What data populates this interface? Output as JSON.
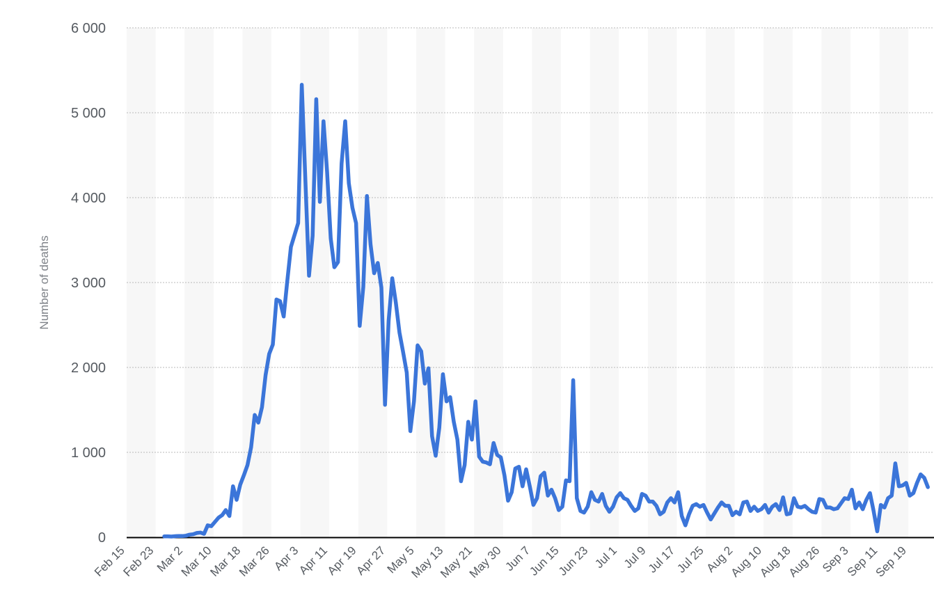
{
  "chart_data": {
    "type": "line",
    "title": "",
    "xlabel": "",
    "ylabel": "Number of deaths",
    "ylim": [
      0,
      6000
    ],
    "y_ticks": [
      0,
      1000,
      2000,
      3000,
      4000,
      5000,
      6000
    ],
    "y_tick_labels": [
      "0",
      "1 000",
      "2 000",
      "3 000",
      "4 000",
      "5 000",
      "6 000"
    ],
    "x_tick_labels": [
      "Feb 15",
      "Feb 23",
      "Mar 2",
      "Mar 10",
      "Mar 18",
      "Mar 26",
      "Apr 3",
      "Apr 11",
      "Apr 19",
      "Apr 27",
      "May 5",
      "May 13",
      "May 21",
      "May 30",
      "Jun 7",
      "Jun 15",
      "Jun 23",
      "Jul 1",
      "Jul 9",
      "Jul 17",
      "Jul 25",
      "Aug 2",
      "Aug 10",
      "Aug 18",
      "Aug 26",
      "Sep 3",
      "Sep 11",
      "Sep 19"
    ],
    "grid": true,
    "legend": "none",
    "colors": {
      "line": "#3b75d9",
      "band": "#f7f7f7",
      "grid": "#b9b9b9",
      "axis": "#000000"
    },
    "series": [
      {
        "values": [
          10,
          10,
          8,
          12,
          15,
          14,
          18,
          30,
          35,
          50,
          55,
          40,
          140,
          130,
          180,
          230,
          260,
          320,
          250,
          600,
          440,
          620,
          730,
          850,
          1060,
          1440,
          1350,
          1530,
          1910,
          2160,
          2270,
          2800,
          2780,
          2600,
          3020,
          3420,
          3560,
          3700,
          5330,
          4200,
          3080,
          3550,
          5160,
          3950,
          4900,
          4300,
          3520,
          3180,
          3240,
          4400,
          4900,
          4170,
          3880,
          3700,
          2490,
          2950,
          4020,
          3450,
          3110,
          3230,
          2940,
          1560,
          2550,
          3050,
          2760,
          2410,
          2180,
          1940,
          1250,
          1600,
          2260,
          2190,
          1810,
          1990,
          1190,
          960,
          1290,
          1920,
          1600,
          1650,
          1360,
          1150,
          660,
          850,
          1360,
          1150,
          1600,
          950,
          890,
          880,
          860,
          1110,
          970,
          940,
          730,
          430,
          530,
          810,
          830,
          600,
          800,
          600,
          380,
          460,
          720,
          760,
          490,
          560,
          460,
          320,
          360,
          670,
          660,
          1850,
          460,
          310,
          290,
          360,
          530,
          440,
          420,
          510,
          370,
          300,
          360,
          470,
          520,
          460,
          440,
          370,
          310,
          340,
          510,
          490,
          420,
          420,
          370,
          270,
          300,
          410,
          460,
          410,
          530,
          250,
          140,
          270,
          370,
          390,
          360,
          380,
          290,
          210,
          280,
          350,
          410,
          370,
          370,
          260,
          300,
          270,
          410,
          420,
          310,
          360,
          310,
          330,
          380,
          290,
          360,
          390,
          320,
          470,
          270,
          280,
          460,
          360,
          350,
          370,
          330,
          300,
          290,
          450,
          440,
          350,
          350,
          330,
          340,
          400,
          460,
          450,
          560,
          340,
          410,
          330,
          440,
          520,
          310,
          70,
          380,
          350,
          460,
          490,
          870,
          600,
          610,
          640,
          490,
          520,
          640,
          740,
          700,
          590
        ]
      }
    ]
  }
}
